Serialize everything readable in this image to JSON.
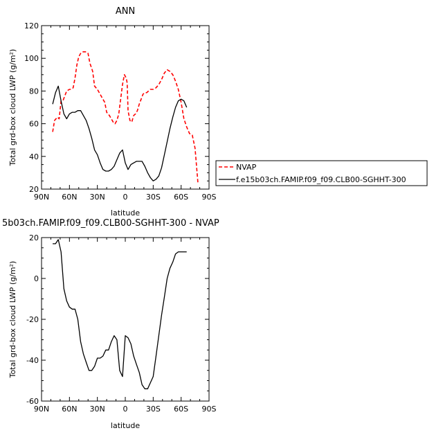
{
  "chart_data": [
    {
      "type": "line",
      "title": "ANN",
      "xlabel": "latitude",
      "ylabel": "Total grd-box cloud LWP (g/m²)",
      "x_tick_labels": [
        "90N",
        "60N",
        "30N",
        "0",
        "30S",
        "60S",
        "90S"
      ],
      "x_tick_values": [
        90,
        60,
        30,
        0,
        -30,
        -60,
        -90
      ],
      "xlim": [
        90,
        -90
      ],
      "y_ticks": [
        20,
        40,
        60,
        80,
        100,
        120
      ],
      "ylim": [
        20,
        120
      ],
      "legend_position": "right",
      "series": [
        {
          "name": "NVAP",
          "color": "#ff0000",
          "dash": "dashed",
          "x": [
            78,
            76,
            73,
            71,
            69,
            67,
            65,
            63,
            60,
            58,
            56,
            54,
            52,
            50,
            48,
            46,
            44,
            42,
            40,
            38,
            35,
            33,
            30,
            27,
            24,
            22,
            20,
            17,
            15,
            13,
            11,
            9,
            7,
            5,
            3,
            1,
            -1,
            -2,
            -3,
            -5,
            -7,
            -9,
            -11,
            -13,
            -15,
            -17,
            -19,
            -21,
            -23,
            -25,
            -27,
            -30,
            -33,
            -36,
            -39,
            -42,
            -45,
            -48,
            -51,
            -54,
            -57,
            -60,
            -63,
            -66,
            -69,
            -72,
            -75,
            -78
          ],
          "y": [
            55,
            62,
            64,
            63,
            74,
            74,
            77,
            80,
            81,
            81,
            82,
            88,
            96,
            101,
            103,
            104,
            104,
            104,
            103,
            97,
            92,
            83,
            81,
            78,
            75,
            73,
            67,
            65,
            63,
            61,
            60,
            62,
            66,
            75,
            84,
            90,
            88,
            85,
            68,
            62,
            61,
            65,
            66,
            68,
            72,
            75,
            78,
            79,
            79,
            80,
            81,
            81,
            82,
            84,
            87,
            91,
            93,
            92,
            90,
            86,
            81,
            73,
            63,
            58,
            54,
            53,
            45,
            24
          ]
        },
        {
          "name": "f.e15b03ch.FAMIP.f09_f09.CLB00-SGHHT-300",
          "color": "#000000",
          "dash": "solid",
          "x": [
            78,
            75,
            72,
            69,
            66,
            63,
            60,
            57,
            54,
            51,
            48,
            45,
            42,
            39,
            36,
            33,
            30,
            27,
            24,
            21,
            18,
            15,
            12,
            9,
            6,
            3,
            0,
            -3,
            -6,
            -9,
            -12,
            -15,
            -18,
            -21,
            -24,
            -27,
            -30,
            -33,
            -36,
            -39,
            -42,
            -45,
            -48,
            -51,
            -54,
            -57,
            -60,
            -63,
            -66
          ],
          "y": [
            72,
            79,
            83,
            74,
            66,
            63,
            66,
            67,
            67,
            68,
            68,
            65,
            62,
            57,
            51,
            44,
            41,
            36,
            32,
            31,
            31,
            32,
            34,
            38,
            42,
            44,
            36,
            32,
            35,
            36,
            37,
            37,
            37,
            34,
            30,
            27,
            25,
            26,
            28,
            33,
            41,
            49,
            57,
            64,
            70,
            74,
            75,
            74,
            70
          ]
        }
      ]
    },
    {
      "type": "line",
      "title": "5b03ch.FAMIP.f09_f09.CLB00-SGHHT-300 - NVAP",
      "xlabel": "latitude",
      "ylabel": "Total grd-box cloud LWP (g/m²)",
      "x_tick_labels": [
        "90N",
        "60N",
        "30N",
        "0",
        "30S",
        "60S",
        "90S"
      ],
      "x_tick_values": [
        90,
        60,
        30,
        0,
        -30,
        -60,
        -90
      ],
      "xlim": [
        90,
        -90
      ],
      "y_ticks": [
        -60,
        -40,
        -20,
        0,
        20
      ],
      "ylim": [
        -60,
        20
      ],
      "series": [
        {
          "color": "#000000",
          "x": [
            78,
            75,
            72,
            69,
            66,
            63,
            60,
            57,
            54,
            51,
            48,
            45,
            42,
            39,
            36,
            33,
            30,
            27,
            24,
            21,
            18,
            15,
            12,
            9,
            6,
            3,
            0,
            -3,
            -6,
            -9,
            -12,
            -15,
            -18,
            -21,
            -24,
            -27,
            -30,
            -33,
            -36,
            -39,
            -42,
            -45,
            -48,
            -51,
            -54,
            -57,
            -60,
            -63,
            -66
          ],
          "y": [
            17,
            17,
            19,
            13,
            -5,
            -11,
            -14,
            -15,
            -15,
            -20,
            -31,
            -37,
            -41,
            -45,
            -45,
            -43,
            -39,
            -39,
            -38,
            -35,
            -35,
            -31,
            -28,
            -30,
            -45,
            -48,
            -28,
            -29,
            -32,
            -38,
            -42,
            -46,
            -52,
            -54,
            -54,
            -51,
            -48,
            -38,
            -28,
            -18,
            -9,
            0,
            5,
            8,
            12,
            13,
            13,
            13,
            13
          ]
        }
      ]
    }
  ]
}
